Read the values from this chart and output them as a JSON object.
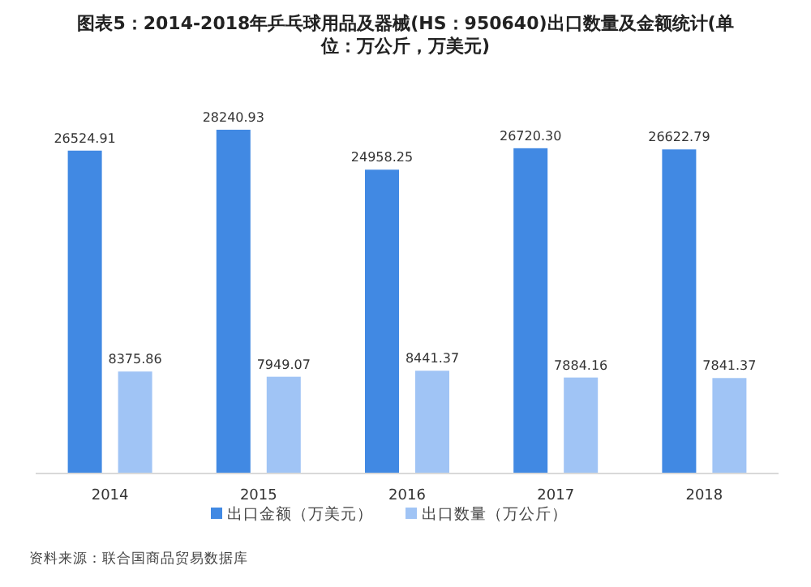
{
  "chart_data": {
    "type": "bar",
    "title": "图表5：2014-2018年乒乓球用品及器械(HS：950640)出口数量及金额统计(单位：万公斤，万美元)",
    "categories": [
      "2014",
      "2015",
      "2016",
      "2017",
      "2018"
    ],
    "series": [
      {
        "name": "出口金额（万美元）",
        "color": "#4189e3",
        "values": [
          26524.91,
          28240.93,
          24958.25,
          26720.3,
          26622.79
        ],
        "value_labels": [
          "26524.91",
          "28240.93",
          "24958.25",
          "26720.30",
          "26622.79"
        ]
      },
      {
        "name": "出口数量（万公斤）",
        "color": "#a0c4f5",
        "values": [
          8375.86,
          7949.07,
          8441.37,
          7884.16,
          7841.37
        ],
        "value_labels": [
          "8375.86",
          "7949.07",
          "8441.37",
          "7884.16",
          "7841.37"
        ]
      }
    ],
    "legend": "bottom",
    "annotations": [
      "资料来源：联合国商品贸易数据库"
    ]
  }
}
